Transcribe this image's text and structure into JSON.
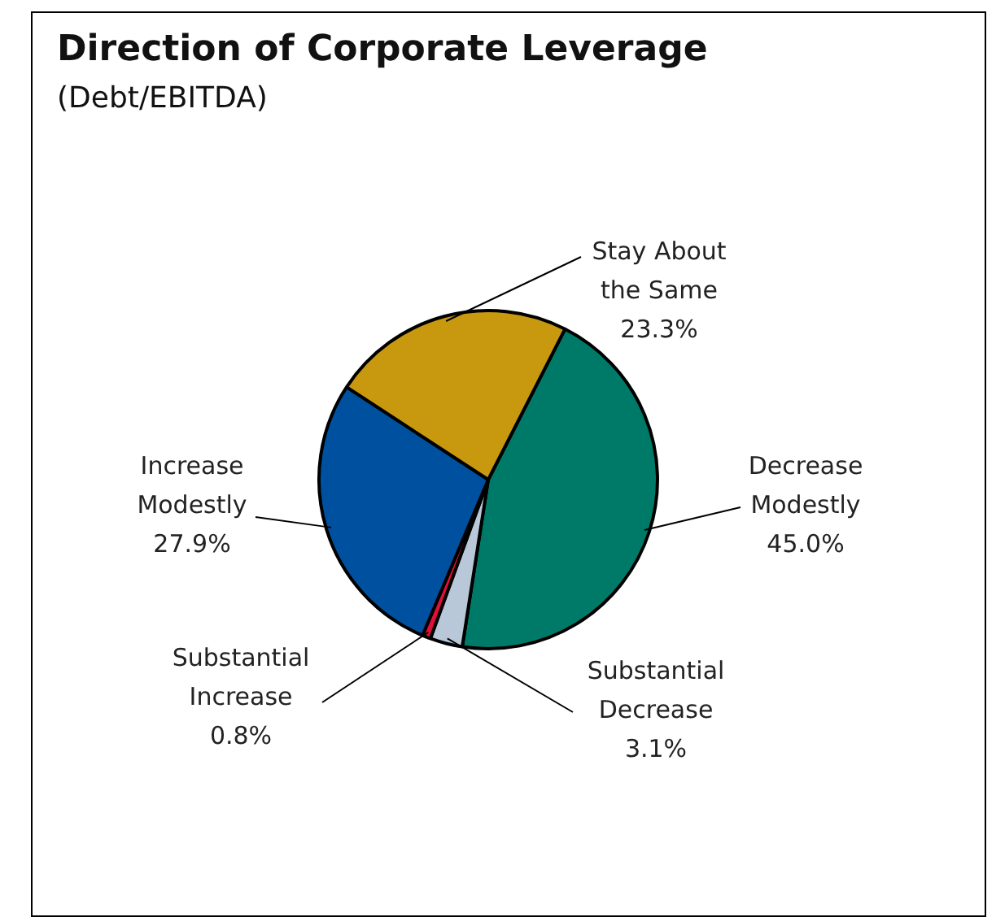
{
  "chart_data": {
    "type": "pie",
    "title": "Direction of Corporate Leverage",
    "subtitle": "(Debt/EBITDA)",
    "categories": [
      "Decrease Modestly",
      "Substantial Decrease",
      "Substantial Increase",
      "Increase Modestly",
      "Stay About the Same"
    ],
    "values": [
      45.0,
      3.1,
      0.8,
      27.9,
      23.3
    ],
    "value_labels": [
      "45.0%",
      "3.1%",
      "0.8%",
      "27.9%",
      "23.3%"
    ],
    "colors": [
      "#007a68",
      "#b8c8d8",
      "#e0103a",
      "#0050a0",
      "#c8980f"
    ],
    "legend": false
  }
}
